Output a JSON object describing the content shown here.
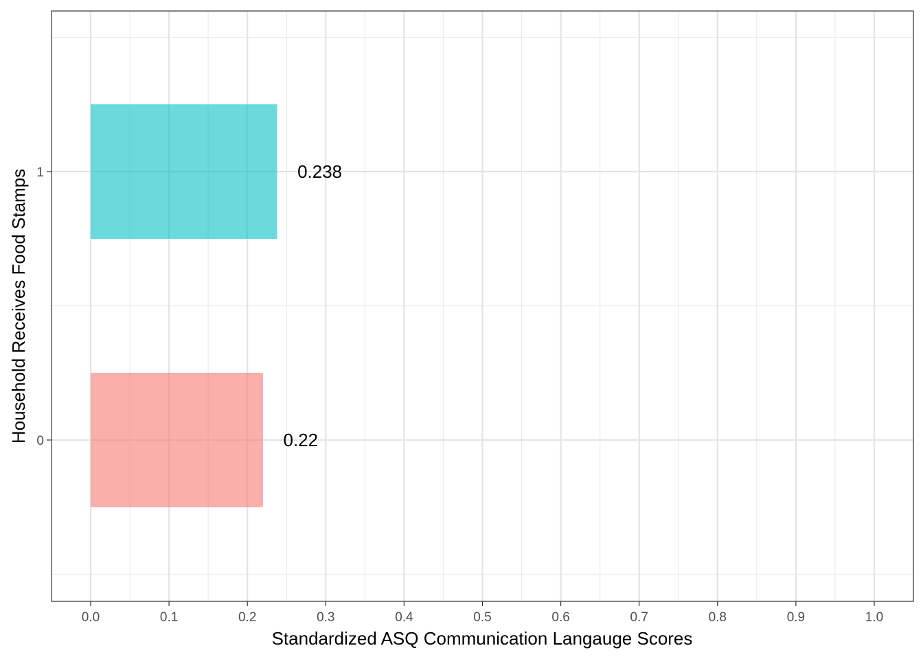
{
  "chart_data": {
    "type": "bar",
    "orientation": "horizontal",
    "categories": [
      "0",
      "1"
    ],
    "values": [
      0.22,
      0.238
    ],
    "data_labels": [
      "0.22",
      "0.238"
    ],
    "colors": [
      "#F8766D",
      "#00BFC4"
    ],
    "xlabel": "Standardized ASQ Communication Langauge Scores",
    "ylabel": "Household Receives Food Stamps",
    "xlim": [
      0.0,
      1.0
    ],
    "x_ticks": [
      0.0,
      0.1,
      0.2,
      0.3,
      0.4,
      0.5,
      0.6,
      0.7,
      0.8,
      0.9,
      1.0
    ],
    "x_tick_labels": [
      "0.0",
      "0.1",
      "0.2",
      "0.3",
      "0.4",
      "0.5",
      "0.6",
      "0.7",
      "0.8",
      "0.9",
      "1.0"
    ],
    "grid": true,
    "legend": "none"
  }
}
